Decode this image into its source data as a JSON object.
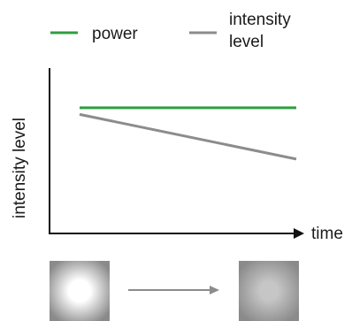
{
  "chart_data": {
    "type": "line",
    "title": "",
    "xlabel": "time",
    "ylabel": "intensity level",
    "x": [
      0,
      1
    ],
    "xlim": [
      0,
      1
    ],
    "ylim": [
      0,
      1
    ],
    "grid": false,
    "legend_position": "top",
    "series": [
      {
        "name": "power",
        "values": [
          0.76,
          0.76
        ],
        "color": "#2e9e41"
      },
      {
        "name": "intensity level",
        "values": [
          0.72,
          0.45
        ],
        "color": "#8c8c8c"
      }
    ]
  },
  "legend": {
    "items": [
      {
        "label_lines": [
          "power"
        ],
        "color": "#2e9e41"
      },
      {
        "label_lines": [
          "intensity",
          "level"
        ],
        "color": "#8c8c8c"
      }
    ]
  },
  "illustration": {
    "arrow_color": "#8c8c8c",
    "spots": [
      {
        "name": "bright-spot",
        "center_color": "#ffffff",
        "edge_color": "#8a8a8a"
      },
      {
        "name": "dim-spot",
        "center_color": "#c6c6c6",
        "edge_color": "#8a8a8a"
      }
    ]
  }
}
